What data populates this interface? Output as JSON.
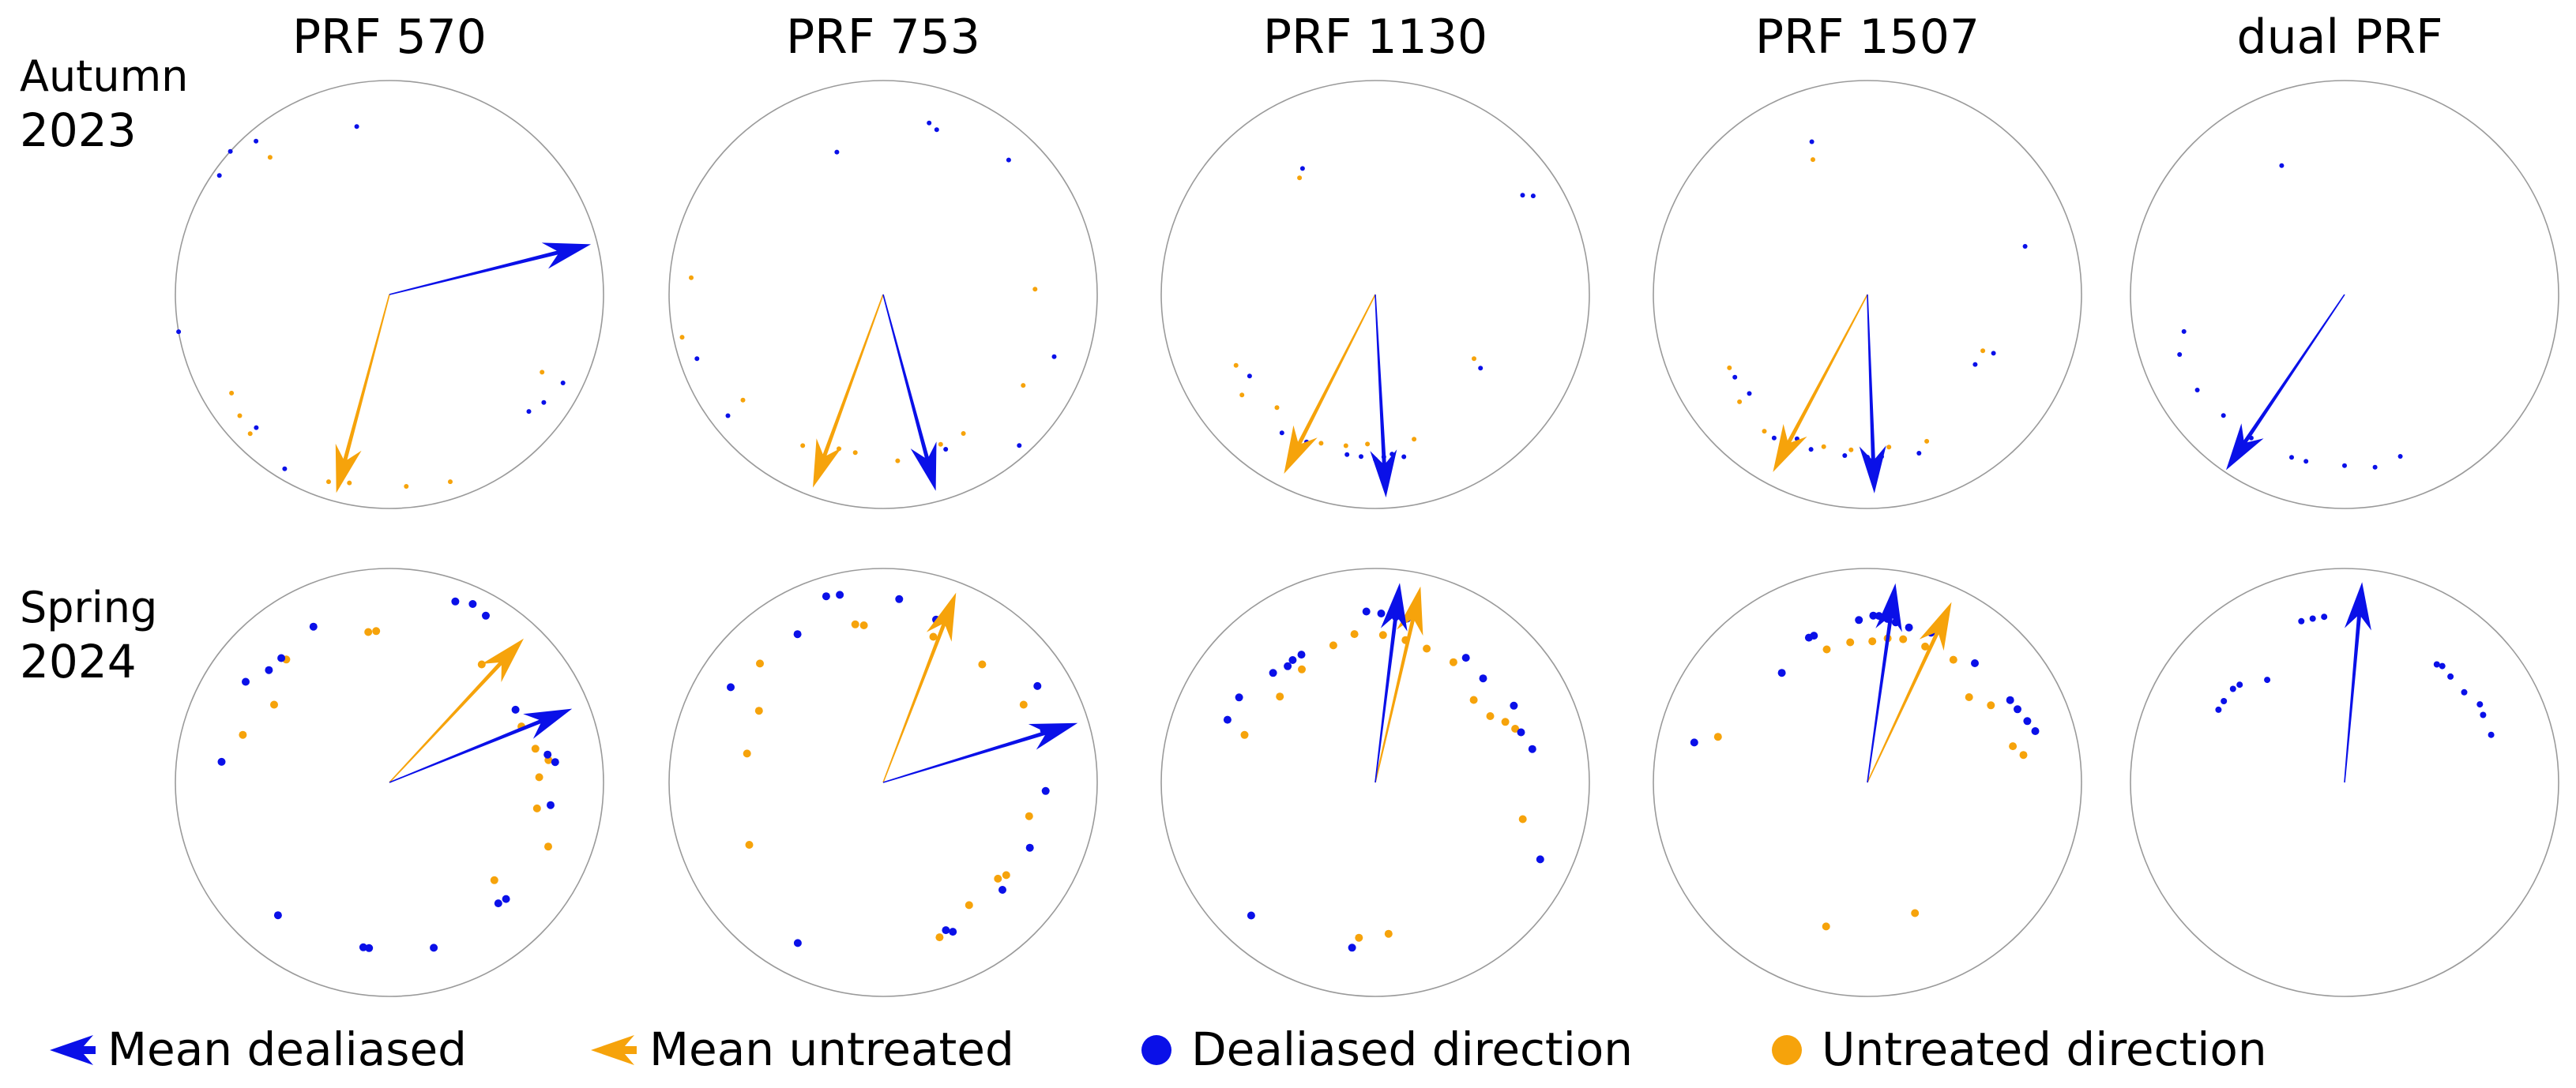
{
  "chart_data": {
    "type": "polar-scatter",
    "description_units": "angles in degrees clockwise from north (0 = up); radius normalised 0..1",
    "columns": [
      "PRF 570",
      "PRF 753",
      "PRF 1130",
      "PRF 1507",
      "dual PRF"
    ],
    "rows": [
      {
        "line1": "Autumn",
        "line2": "2023"
      },
      {
        "line1": "Spring",
        "line2": "2024"
      }
    ],
    "colors": {
      "dealiased": "#0a10e8",
      "untreated": "#f6a30b",
      "circle": "#9a9a9a"
    },
    "legend": [
      {
        "type": "arrow",
        "series": "dealiased",
        "label": "Mean dealiased"
      },
      {
        "type": "arrow",
        "series": "untreated",
        "label": "Mean untreated"
      },
      {
        "type": "dot",
        "series": "dealiased",
        "label": "Dealiased direction"
      },
      {
        "type": "dot",
        "series": "untreated",
        "label": "Untreated direction"
      }
    ],
    "panels": [
      {
        "row": 0,
        "col": 0,
        "mean_dealiased": {
          "angle": 76,
          "length": 0.97
        },
        "mean_untreated": {
          "angle": 195,
          "length": 0.96
        },
        "dealiased_points": [
          [
            349,
            0.8
          ],
          [
            319,
            0.95
          ],
          [
            312,
            1.0
          ],
          [
            305,
            0.97
          ],
          [
            260,
            1.0
          ],
          [
            225,
            0.88
          ],
          [
            211,
            0.95
          ],
          [
            130,
            0.85
          ],
          [
            125,
            0.88
          ],
          [
            117,
            0.91
          ]
        ],
        "untreated_points": [
          [
            319,
            0.85
          ],
          [
            238,
            0.87
          ],
          [
            231,
            0.9
          ],
          [
            225,
            0.92
          ],
          [
            198,
            0.92
          ],
          [
            192,
            0.9
          ],
          [
            175,
            0.9
          ],
          [
            162,
            0.92
          ],
          [
            117,
            0.8
          ]
        ],
        "dealiased_size": 3,
        "untreated_size": 3
      },
      {
        "row": 0,
        "col": 1,
        "mean_dealiased": {
          "angle": 165,
          "length": 0.95
        },
        "mean_untreated": {
          "angle": 200,
          "length": 0.96
        },
        "dealiased_points": [
          [
            342,
            0.7
          ],
          [
            15,
            0.83
          ],
          [
            18,
            0.81
          ],
          [
            43,
            0.86
          ],
          [
            110,
            0.85
          ],
          [
            138,
            0.95
          ],
          [
            158,
            0.78
          ],
          [
            165,
            0.8
          ],
          [
            232,
            0.92
          ],
          [
            251,
            0.92
          ]
        ],
        "untreated_points": [
          [
            88,
            0.71
          ],
          [
            123,
            0.78
          ],
          [
            150,
            0.75
          ],
          [
            159,
            0.75
          ],
          [
            175,
            0.78
          ],
          [
            190,
            0.75
          ],
          [
            196,
            0.75
          ],
          [
            208,
            0.8
          ],
          [
            233,
            0.82
          ],
          [
            258,
            0.96
          ],
          [
            275,
            0.9
          ]
        ],
        "dealiased_size": 3,
        "untreated_size": 3
      },
      {
        "row": 0,
        "col": 2,
        "mean_dealiased": {
          "angle": 177,
          "length": 0.95
        },
        "mean_untreated": {
          "angle": 207,
          "length": 0.94
        },
        "dealiased_points": [
          [
            56,
            0.83
          ],
          [
            58,
            0.87
          ],
          [
            125,
            0.6
          ],
          [
            170,
            0.77
          ],
          [
            174,
            0.75
          ],
          [
            177,
            0.76
          ],
          [
            180,
            0.77
          ],
          [
            185,
            0.76
          ],
          [
            190,
            0.76
          ],
          [
            205,
            0.76
          ],
          [
            214,
            0.78
          ],
          [
            237,
            0.7
          ],
          [
            330,
            0.68
          ]
        ],
        "untreated_points": [
          [
            327,
            0.65
          ],
          [
            123,
            0.55
          ],
          [
            165,
            0.7
          ],
          [
            183,
            0.7
          ],
          [
            191,
            0.72
          ],
          [
            200,
            0.74
          ],
          [
            221,
            0.7
          ],
          [
            233,
            0.78
          ],
          [
            243,
            0.73
          ]
        ],
        "dealiased_size": 3,
        "untreated_size": 3
      },
      {
        "row": 0,
        "col": 3,
        "mean_dealiased": {
          "angle": 178,
          "length": 0.93
        },
        "mean_untreated": {
          "angle": 208,
          "length": 0.94
        },
        "dealiased_points": [
          [
            340,
            0.76
          ],
          [
            73,
            0.77
          ],
          [
            115,
            0.65
          ],
          [
            123,
            0.6
          ],
          [
            162,
            0.78
          ],
          [
            175,
            0.76
          ],
          [
            180,
            0.76
          ],
          [
            188,
            0.76
          ],
          [
            200,
            0.77
          ],
          [
            206,
            0.75
          ],
          [
            213,
            0.8
          ],
          [
            230,
            0.72
          ],
          [
            238,
            0.73
          ]
        ],
        "untreated_points": [
          [
            338,
            0.68
          ],
          [
            116,
            0.6
          ],
          [
            158,
            0.74
          ],
          [
            172,
            0.72
          ],
          [
            186,
            0.73
          ],
          [
            196,
            0.74
          ],
          [
            217,
            0.8
          ],
          [
            230,
            0.78
          ],
          [
            242,
            0.73
          ]
        ],
        "dealiased_size": 3,
        "untreated_size": 3
      },
      {
        "row": 0,
        "col": 4,
        "mean_dealiased": {
          "angle": 214,
          "length": 0.99
        },
        "mean_untreated": null,
        "dealiased_points": [
          [
            334,
            0.67
          ],
          [
            161,
            0.8
          ],
          [
            170,
            0.82
          ],
          [
            180,
            0.8
          ],
          [
            193,
            0.8
          ],
          [
            198,
            0.8
          ],
          [
            213,
            0.8
          ],
          [
            225,
            0.8
          ],
          [
            237,
            0.82
          ],
          [
            250,
            0.82
          ],
          [
            257,
            0.77
          ]
        ],
        "untreated_points": [],
        "dealiased_size": 3,
        "untreated_size": 3
      },
      {
        "row": 1,
        "col": 0,
        "mean_dealiased": {
          "angle": 68,
          "length": 0.92
        },
        "mean_untreated": {
          "angle": 43,
          "length": 0.92
        },
        "dealiased_points": [
          [
            20,
            0.9
          ],
          [
            25,
            0.92
          ],
          [
            30,
            0.9
          ],
          [
            60,
            0.68
          ],
          [
            80,
            0.75
          ],
          [
            83,
            0.78
          ],
          [
            98,
            0.76
          ],
          [
            135,
            0.77
          ],
          [
            138,
            0.76
          ],
          [
            165,
            0.8
          ],
          [
            187,
            0.78
          ],
          [
            189,
            0.78
          ],
          [
            220,
            0.81
          ],
          [
            277,
            0.79
          ],
          [
            305,
            0.82
          ],
          [
            313,
            0.77
          ],
          [
            319,
            0.77
          ],
          [
            334,
            0.81
          ]
        ],
        "untreated_points": [
          [
            352,
            0.71
          ],
          [
            355,
            0.71
          ],
          [
            38,
            0.7
          ],
          [
            67,
            0.67
          ],
          [
            77,
            0.7
          ],
          [
            82,
            0.75
          ],
          [
            88,
            0.7
          ],
          [
            100,
            0.7
          ],
          [
            112,
            0.8
          ],
          [
            133,
            0.67
          ],
          [
            288,
            0.72
          ],
          [
            304,
            0.65
          ],
          [
            320,
            0.75
          ]
        ],
        "dealiased_size": 5,
        "untreated_size": 5
      },
      {
        "row": 1,
        "col": 1,
        "mean_dealiased": {
          "angle": 73,
          "length": 0.95
        },
        "mean_untreated": {
          "angle": 21,
          "length": 0.95
        },
        "dealiased_points": [
          [
            347,
            0.9
          ],
          [
            343,
            0.91
          ],
          [
            5,
            0.86
          ],
          [
            18,
            0.8
          ],
          [
            58,
            0.85
          ],
          [
            72,
            0.79
          ],
          [
            93,
            0.76
          ],
          [
            114,
            0.75
          ],
          [
            132,
            0.75
          ],
          [
            155,
            0.77
          ],
          [
            157,
            0.75
          ],
          [
            208,
            0.85
          ],
          [
            302,
            0.84
          ],
          [
            330,
            0.8
          ]
        ],
        "untreated_points": [
          [
            350,
            0.75
          ],
          [
            353,
            0.74
          ],
          [
            19,
            0.72
          ],
          [
            40,
            0.72
          ],
          [
            61,
            0.75
          ],
          [
            103,
            0.7
          ],
          [
            127,
            0.72
          ],
          [
            130,
            0.7
          ],
          [
            145,
            0.7
          ],
          [
            160,
            0.77
          ],
          [
            245,
            0.69
          ],
          [
            282,
            0.65
          ],
          [
            300,
            0.67
          ],
          [
            314,
            0.8
          ]
        ],
        "dealiased_size": 5,
        "untreated_size": 5
      },
      {
        "row": 1,
        "col": 2,
        "mean_dealiased": {
          "angle": 7,
          "length": 0.94
        },
        "mean_untreated": {
          "angle": 13,
          "length": 0.94
        },
        "dealiased_points": [
          [
            293,
            0.75
          ],
          [
            302,
            0.75
          ],
          [
            317,
            0.7
          ],
          [
            323,
            0.68
          ],
          [
            326,
            0.69
          ],
          [
            330,
            0.69
          ],
          [
            357,
            0.8
          ],
          [
            2,
            0.79
          ],
          [
            7,
            0.78
          ],
          [
            11,
            0.78
          ],
          [
            36,
            0.72
          ],
          [
            46,
            0.7
          ],
          [
            61,
            0.74
          ],
          [
            71,
            0.72
          ],
          [
            78,
            0.75
          ],
          [
            115,
            0.85
          ],
          [
            188,
            0.78
          ],
          [
            223,
            0.85
          ]
        ],
        "untreated_points": [
          [
            290,
            0.65
          ],
          [
            312,
            0.6
          ],
          [
            327,
            0.63
          ],
          [
            343,
            0.67
          ],
          [
            352,
            0.7
          ],
          [
            3,
            0.69
          ],
          [
            12,
            0.68
          ],
          [
            21,
            0.67
          ],
          [
            33,
            0.67
          ],
          [
            50,
            0.6
          ],
          [
            60,
            0.62
          ],
          [
            65,
            0.67
          ],
          [
            69,
            0.7
          ],
          [
            104,
            0.71
          ],
          [
            175,
            0.71
          ],
          [
            186,
            0.73
          ]
        ],
        "dealiased_size": 5,
        "untreated_size": 5
      },
      {
        "row": 1,
        "col": 3,
        "mean_dealiased": {
          "angle": 8,
          "length": 0.94
        },
        "mean_untreated": {
          "angle": 25,
          "length": 0.93
        },
        "dealiased_points": [
          [
            283,
            0.83
          ],
          [
            322,
            0.65
          ],
          [
            338,
            0.73
          ],
          [
            340,
            0.73
          ],
          [
            357,
            0.76
          ],
          [
            2,
            0.78
          ],
          [
            4,
            0.78
          ],
          [
            7,
            0.77
          ],
          [
            10,
            0.76
          ],
          [
            15,
            0.75
          ],
          [
            23,
            0.76
          ],
          [
            42,
            0.75
          ],
          [
            60,
            0.77
          ],
          [
            64,
            0.78
          ],
          [
            69,
            0.8
          ],
          [
            73,
            0.82
          ]
        ],
        "untreated_points": [
          [
            287,
            0.73
          ],
          [
            343,
            0.65
          ],
          [
            353,
            0.66
          ],
          [
            2,
            0.66
          ],
          [
            8,
            0.68
          ],
          [
            14,
            0.69
          ],
          [
            23,
            0.69
          ],
          [
            35,
            0.7
          ],
          [
            50,
            0.62
          ],
          [
            58,
            0.68
          ],
          [
            76,
            0.7
          ],
          [
            80,
            0.74
          ],
          [
            160,
            0.65
          ],
          [
            196,
            0.7
          ]
        ],
        "dealiased_size": 5,
        "untreated_size": 5
      },
      {
        "row": 1,
        "col": 4,
        "mean_dealiased": {
          "angle": 5,
          "length": 0.94
        },
        "mean_untreated": null,
        "dealiased_points": [
          [
            300,
            0.68
          ],
          [
            304,
            0.68
          ],
          [
            310,
            0.68
          ],
          [
            313,
            0.67
          ],
          [
            323,
            0.6
          ],
          [
            345,
            0.78
          ],
          [
            349,
            0.78
          ],
          [
            353,
            0.78
          ],
          [
            38,
            0.7
          ],
          [
            40,
            0.71
          ],
          [
            45,
            0.7
          ],
          [
            53,
            0.7
          ],
          [
            60,
            0.73
          ],
          [
            64,
            0.72
          ],
          [
            72,
            0.72
          ]
        ],
        "untreated_points": [],
        "dealiased_size": 4,
        "untreated_size": 4
      }
    ]
  }
}
